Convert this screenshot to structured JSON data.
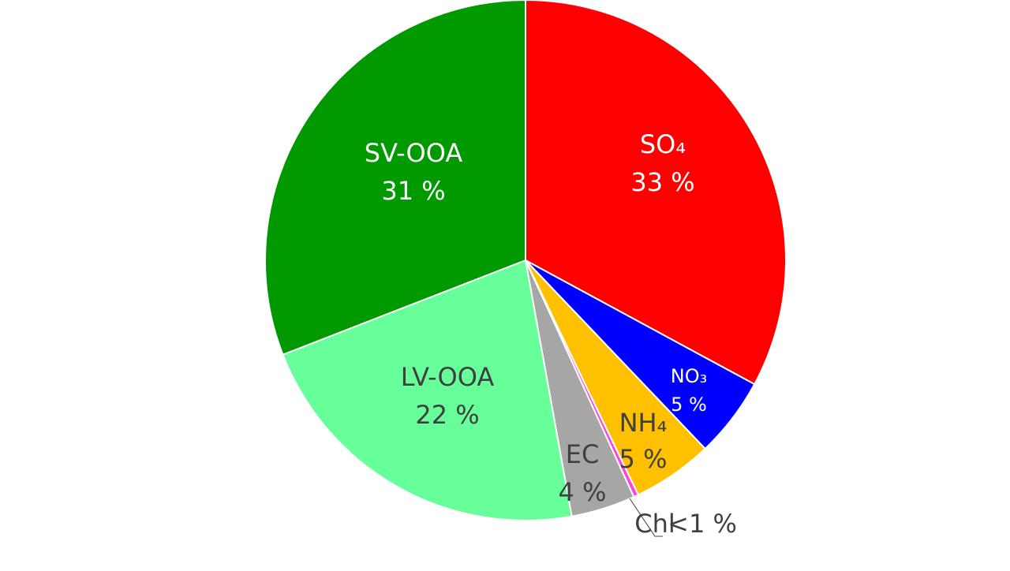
{
  "chart_data": {
    "type": "pie",
    "categories": [
      "SO₄",
      "NO₃",
      "NH₄",
      "Chl",
      "EC",
      "LV-OOA",
      "SV-OOA"
    ],
    "values": [
      33,
      5,
      5,
      0.3,
      4,
      22,
      31
    ],
    "value_labels": [
      "33 %",
      "5 %",
      "5 %",
      "<1 %",
      "4 %",
      "22 %",
      "31 %"
    ],
    "colors": [
      "#ff0000",
      "#0000ff",
      "#ffc000",
      "#ff44dd",
      "#a6a6a6",
      "#66ff99",
      "#009900"
    ]
  }
}
